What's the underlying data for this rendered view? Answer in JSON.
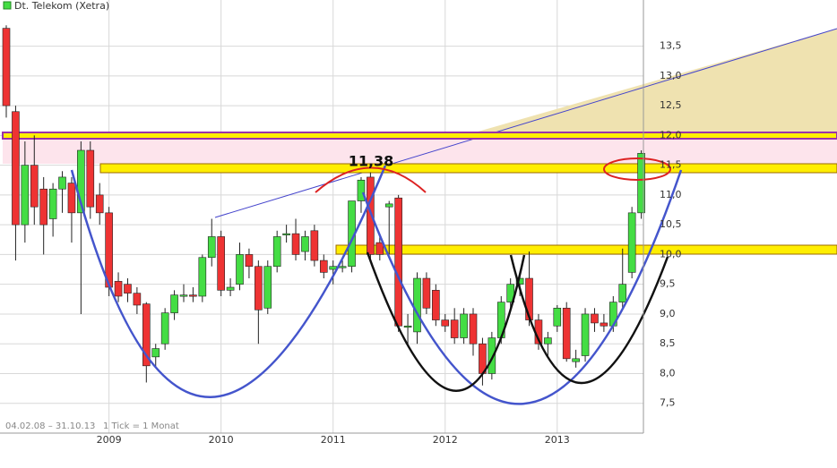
{
  "chart_data": {
    "type": "candlestick",
    "title": "Dt. Telekom (Xetra)",
    "footer": "04.02.08 – 31.10.13",
    "interval": "1 Tick = 1 Monat",
    "annotation": "11,38",
    "categories": [
      null,
      null,
      null,
      null,
      null,
      null,
      null,
      null,
      null,
      null,
      null,
      "2009",
      null,
      null,
      null,
      null,
      null,
      null,
      null,
      null,
      null,
      null,
      null,
      "2010",
      null,
      null,
      null,
      null,
      null,
      null,
      null,
      null,
      null,
      null,
      null,
      "2011",
      null,
      null,
      null,
      null,
      null,
      null,
      null,
      null,
      null,
      null,
      null,
      "2012",
      null,
      null,
      null,
      null,
      null,
      null,
      null,
      null,
      null,
      null,
      null,
      "2013",
      null,
      null,
      null,
      null,
      null,
      null,
      null,
      null,
      null
    ],
    "series": [
      {
        "name": "Dt. Telekom (Xetra)",
        "up_color": "#44dd44",
        "down_color": "#ee3333",
        "open": [
          13.8,
          12.4,
          10.5,
          11.5,
          11.1,
          10.6,
          11.1,
          11.2,
          10.7,
          11.75,
          11.0,
          10.7,
          9.55,
          9.5,
          9.35,
          9.17,
          8.28,
          8.5,
          9.02,
          9.3,
          9.32,
          9.3,
          9.95,
          10.3,
          9.4,
          9.5,
          10.0,
          9.8,
          9.1,
          9.8,
          10.35,
          10.35,
          10.05,
          10.4,
          9.9,
          9.75,
          9.8,
          9.8,
          10.9,
          11.3,
          10.2,
          10.8,
          10.95,
          8.8,
          8.7,
          9.6,
          9.4,
          8.9,
          8.9,
          8.6,
          9.0,
          8.5,
          8.0,
          8.6,
          9.2,
          9.5,
          9.6,
          8.9,
          8.5,
          8.8,
          9.1,
          8.2,
          8.3,
          9.0,
          8.85,
          8.8,
          9.2,
          9.7,
          10.7
        ],
        "high": [
          13.85,
          12.5,
          11.9,
          12.0,
          11.3,
          11.2,
          11.4,
          11.3,
          11.9,
          11.9,
          11.2,
          10.8,
          9.7,
          9.6,
          9.45,
          9.2,
          8.5,
          9.1,
          9.4,
          9.5,
          9.45,
          10.0,
          10.6,
          10.4,
          9.6,
          10.2,
          10.1,
          9.9,
          9.9,
          10.4,
          10.5,
          10.6,
          10.4,
          10.5,
          10.0,
          9.9,
          9.9,
          10.9,
          11.3,
          11.38,
          10.3,
          10.9,
          11.0,
          9.0,
          9.7,
          9.7,
          9.5,
          9.0,
          9.1,
          9.1,
          9.1,
          8.6,
          8.7,
          9.3,
          9.6,
          9.7,
          10.05,
          9.0,
          8.7,
          9.15,
          9.2,
          8.4,
          9.1,
          9.1,
          9.0,
          9.3,
          10.1,
          10.8,
          11.75
        ],
        "low": [
          12.3,
          9.9,
          10.2,
          10.5,
          10.0,
          10.3,
          10.7,
          10.2,
          9.0,
          10.6,
          10.5,
          9.3,
          9.2,
          9.2,
          9.0,
          7.85,
          8.1,
          8.4,
          8.9,
          9.2,
          9.2,
          9.2,
          9.8,
          9.3,
          9.3,
          9.4,
          9.6,
          8.5,
          9.0,
          9.7,
          10.2,
          9.9,
          9.9,
          9.8,
          9.6,
          9.5,
          9.7,
          9.7,
          10.7,
          9.9,
          9.9,
          10.0,
          8.7,
          8.5,
          8.5,
          9.0,
          8.8,
          8.7,
          8.5,
          8.5,
          8.3,
          7.8,
          7.9,
          8.5,
          9.1,
          9.3,
          8.8,
          8.4,
          8.3,
          8.7,
          8.2,
          8.1,
          8.2,
          8.7,
          8.7,
          8.7,
          9.1,
          9.6,
          10.6
        ],
        "close": [
          12.5,
          10.5,
          11.5,
          10.8,
          10.5,
          11.1,
          11.3,
          10.7,
          11.75,
          10.8,
          10.7,
          9.45,
          9.3,
          9.35,
          9.15,
          8.13,
          8.42,
          9.02,
          9.32,
          9.32,
          9.3,
          9.95,
          10.3,
          9.4,
          9.45,
          10.0,
          9.8,
          9.07,
          9.8,
          10.3,
          10.35,
          10.0,
          10.3,
          9.9,
          9.7,
          9.8,
          9.8,
          10.9,
          11.25,
          10.0,
          10.0,
          10.85,
          8.8,
          8.8,
          9.6,
          9.1,
          8.9,
          8.8,
          8.6,
          9.0,
          8.5,
          8.0,
          8.6,
          9.2,
          9.5,
          9.6,
          8.9,
          8.5,
          8.6,
          9.1,
          8.25,
          8.25,
          9.0,
          8.85,
          8.8,
          9.2,
          9.5,
          10.7,
          11.7
        ]
      }
    ],
    "ylim": [
      7.0,
      14.2
    ],
    "yticks": [
      {
        "value": 7.5,
        "label": "7,5"
      },
      {
        "value": 8.0,
        "label": "8,0"
      },
      {
        "value": 8.5,
        "label": "8,5"
      },
      {
        "value": 9.0,
        "label": "9,0"
      },
      {
        "value": 9.5,
        "label": "9,5"
      },
      {
        "value": 10.0,
        "label": "10,0"
      },
      {
        "value": 10.5,
        "label": "10,5"
      },
      {
        "value": 11.0,
        "label": "11,0"
      },
      {
        "value": 11.5,
        "label": "11,5"
      },
      {
        "value": 12.0,
        "label": "12,0"
      },
      {
        "value": 12.5,
        "label": "12,5"
      },
      {
        "value": 13.0,
        "label": "13,0"
      },
      {
        "value": 13.5,
        "label": "13,5"
      }
    ],
    "grid": true
  }
}
